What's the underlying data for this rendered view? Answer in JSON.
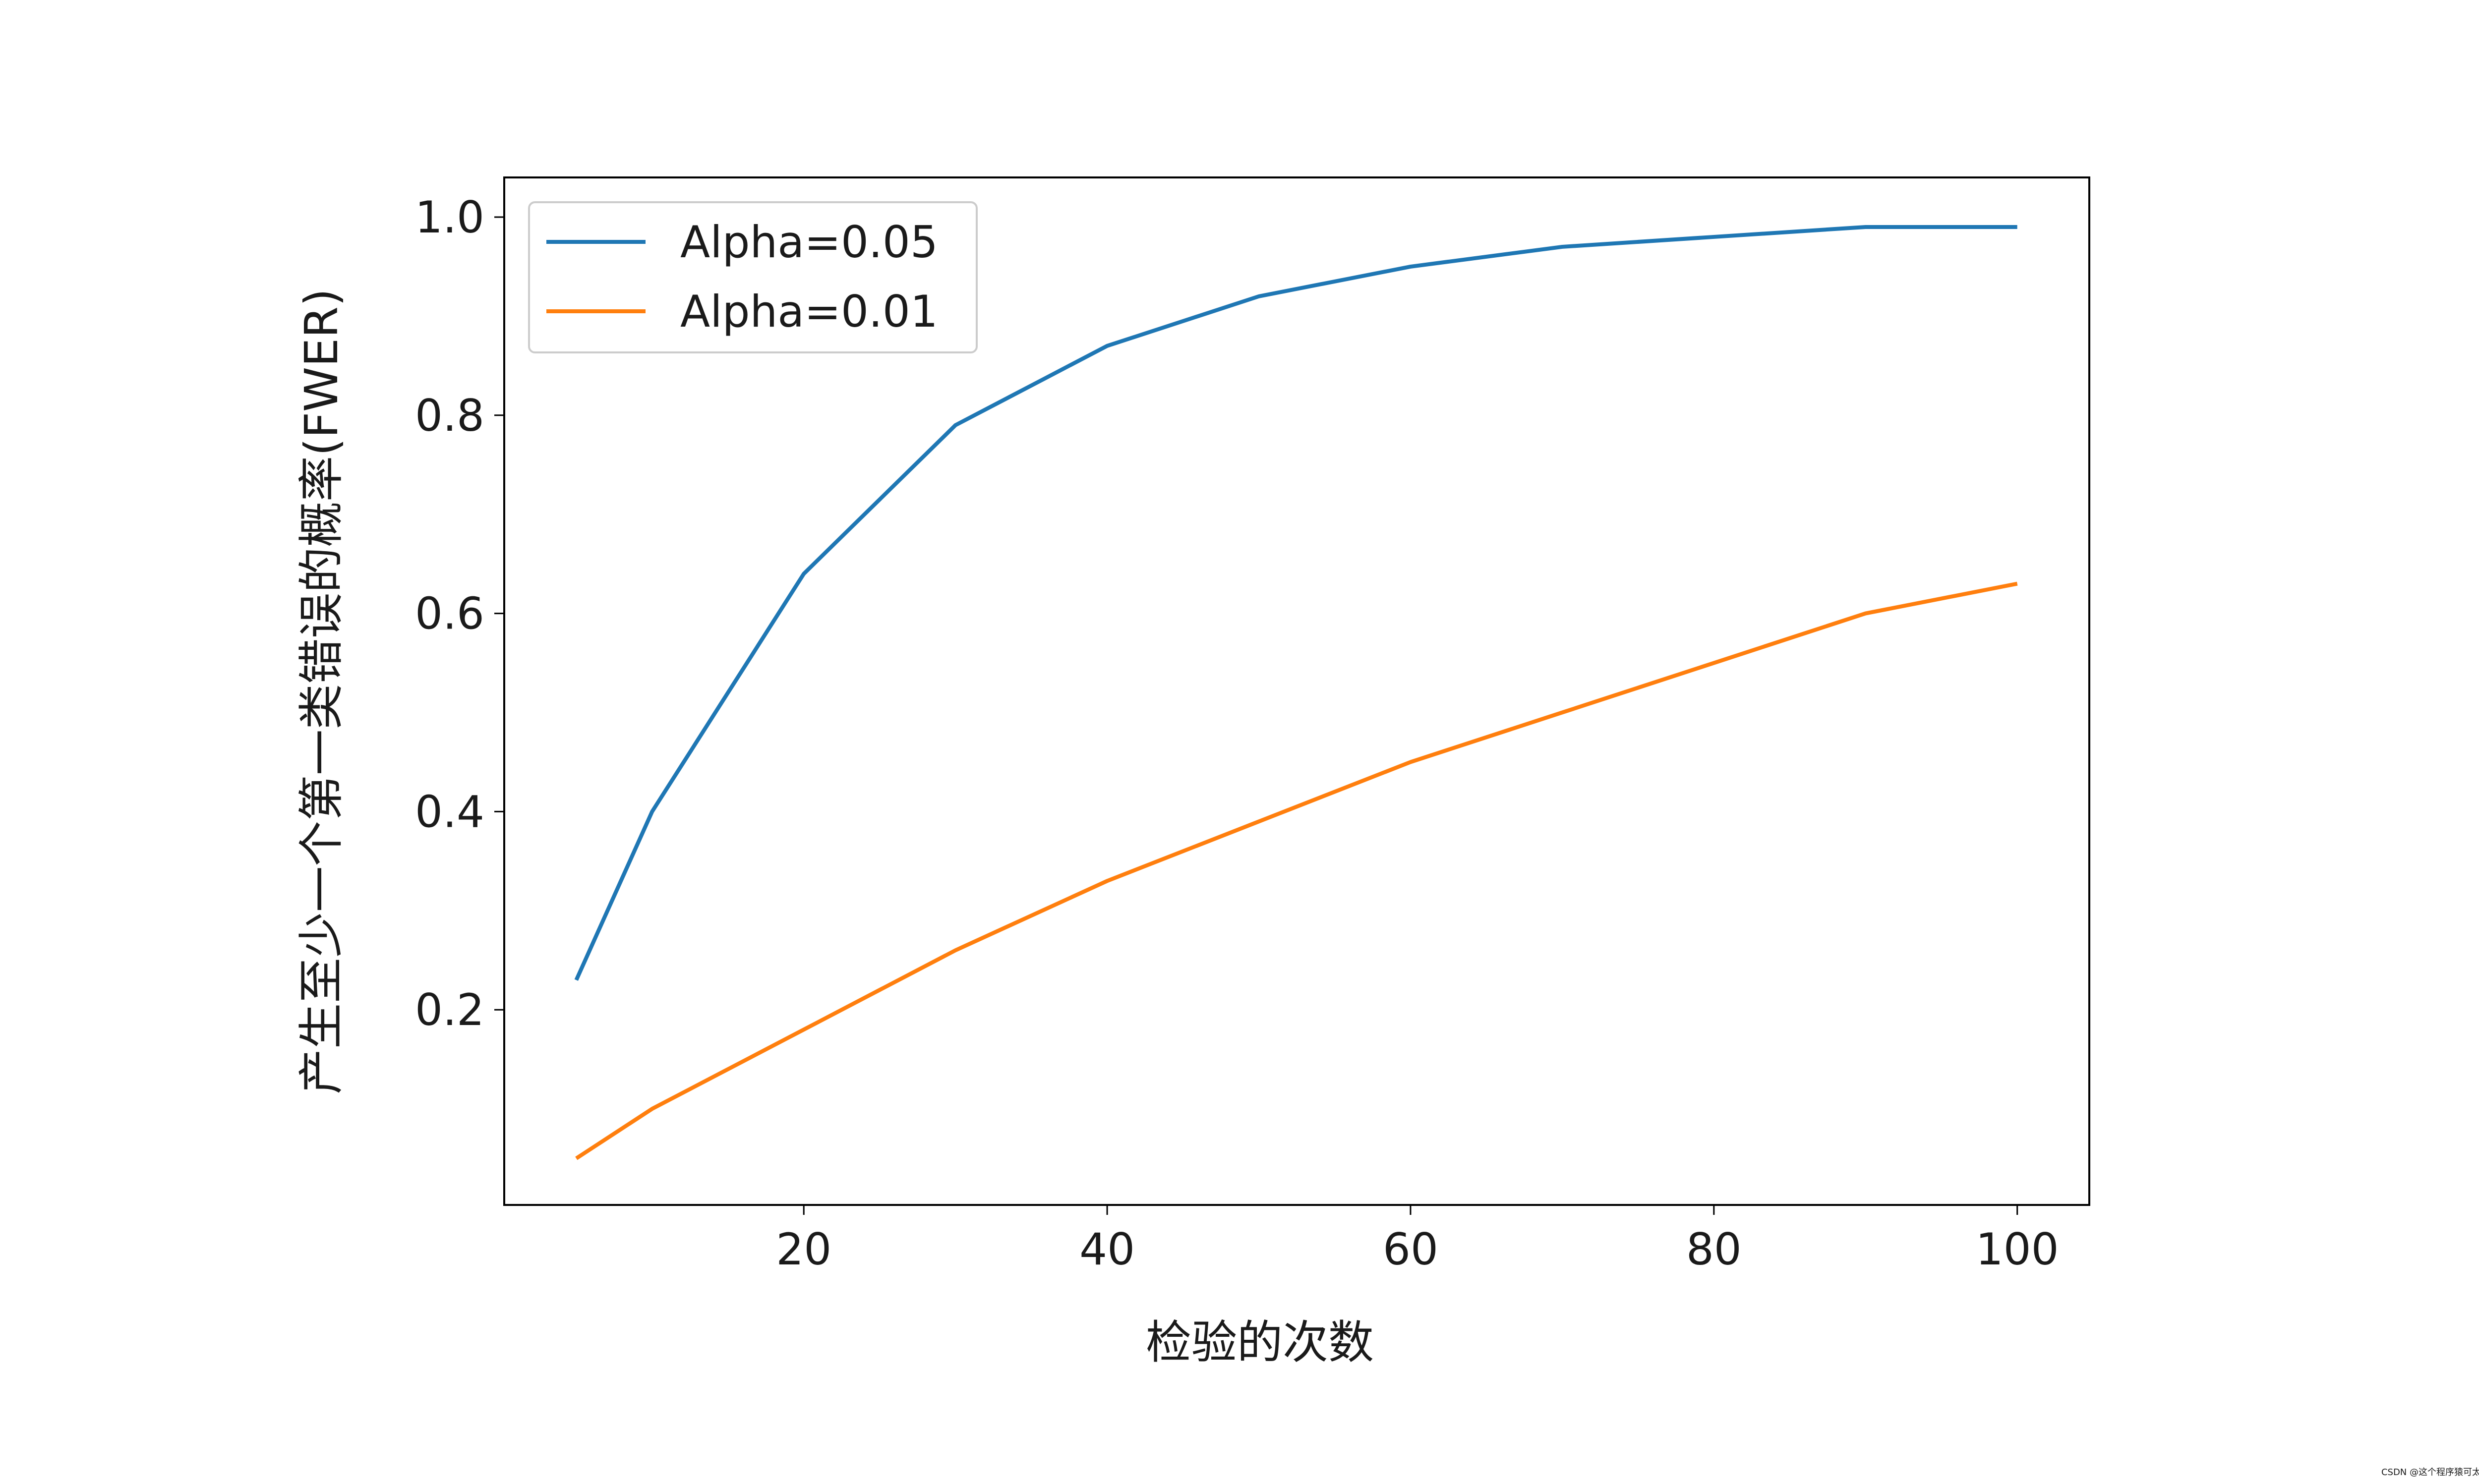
{
  "chart_data": {
    "type": "line",
    "y_label": "产生至少一个第一类错误的概率(FWER)",
    "x_label": "检验的次数",
    "x": [
      5,
      10,
      20,
      30,
      40,
      50,
      60,
      70,
      80,
      90,
      100
    ],
    "series": [
      {
        "name": "Alpha=0.05",
        "color": "#1f77b4",
        "values": [
          0.23,
          0.4,
          0.64,
          0.79,
          0.87,
          0.92,
          0.95,
          0.97,
          0.98,
          0.99,
          0.99
        ]
      },
      {
        "name": "Alpha=0.01",
        "color": "#ff7f0e",
        "values": [
          0.05,
          0.1,
          0.18,
          0.26,
          0.33,
          0.39,
          0.45,
          0.5,
          0.55,
          0.6,
          0.63
        ]
      }
    ],
    "xlim": [
      0.25,
      104.75
    ],
    "ylim": [
      0.003,
      1.04
    ],
    "xticks": [
      20,
      40,
      60,
      80,
      100
    ],
    "yticks": [
      0.2,
      0.4,
      0.6,
      0.8,
      {
        "value": 1,
        "label": "1.0"
      }
    ],
    "legend": "upper left",
    "watermark": "CSDN @这个程序猿可太秀了"
  }
}
